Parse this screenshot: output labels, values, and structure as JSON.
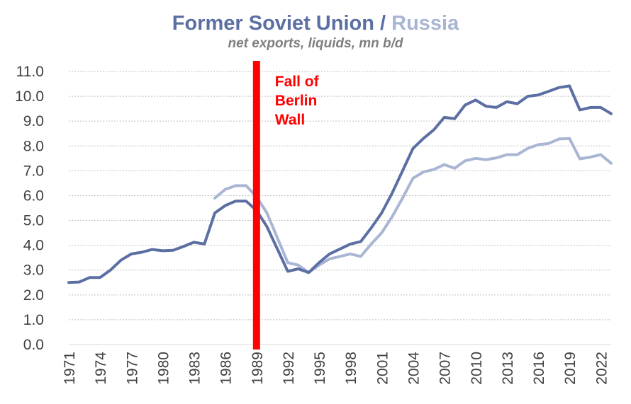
{
  "colors": {
    "fsu": "#5b6fa3",
    "russia": "#a9b6d3",
    "marker": "#ff0000",
    "grid": "#bfbfbf",
    "text": "#404040"
  },
  "chart_data": {
    "type": "line",
    "title_part1": "Former Soviet Union",
    "title_sep": " / ",
    "title_part2": "Russia",
    "subtitle": "net exports, liquids, mn b/d",
    "xlabel": "",
    "ylabel": "",
    "ylim": [
      0,
      11
    ],
    "yticks": [
      "0.0",
      "1.0",
      "2.0",
      "3.0",
      "4.0",
      "5.0",
      "6.0",
      "7.0",
      "8.0",
      "9.0",
      "10.0",
      "11.0"
    ],
    "xlim": [
      1971,
      2023
    ],
    "xticks": [
      1971,
      1974,
      1977,
      1980,
      1983,
      1986,
      1989,
      1992,
      1995,
      1998,
      2001,
      2004,
      2007,
      2010,
      2013,
      2016,
      2019,
      2022
    ],
    "grid": true,
    "legend": "none",
    "series": [
      {
        "key": "fsu",
        "x": [
          1971,
          1972,
          1973,
          1974,
          1975,
          1976,
          1977,
          1978,
          1979,
          1980,
          1981,
          1982,
          1983,
          1984,
          1985,
          1986,
          1987,
          1988,
          1989,
          1990,
          1991,
          1992,
          1993,
          1994,
          1995,
          1996,
          1997,
          1998,
          1999,
          2000,
          2001,
          2002,
          2003,
          2004,
          2005,
          2006,
          2007,
          2008,
          2009,
          2010,
          2011,
          2012,
          2013,
          2014,
          2015,
          2016,
          2017,
          2018,
          2019,
          2020,
          2021,
          2022,
          2023
        ],
        "values": [
          2.5,
          2.52,
          2.7,
          2.7,
          3.0,
          3.4,
          3.65,
          3.72,
          3.83,
          3.78,
          3.8,
          3.95,
          4.12,
          4.05,
          5.3,
          5.6,
          5.78,
          5.78,
          5.4,
          4.75,
          3.85,
          2.95,
          3.05,
          2.9,
          3.3,
          3.65,
          3.85,
          4.05,
          4.15,
          4.7,
          5.3,
          6.1,
          7.0,
          7.9,
          8.3,
          8.65,
          9.15,
          9.1,
          9.65,
          9.85,
          9.6,
          9.55,
          9.78,
          9.7,
          10.0,
          10.05,
          10.2,
          10.35,
          10.42,
          9.45,
          9.55,
          9.55,
          9.3
        ]
      },
      {
        "key": "russia",
        "x": [
          1985,
          1986,
          1987,
          1988,
          1989,
          1990,
          1991,
          1992,
          1993,
          1994,
          1995,
          1996,
          1997,
          1998,
          1999,
          2000,
          2001,
          2002,
          2003,
          2004,
          2005,
          2006,
          2007,
          2008,
          2009,
          2010,
          2011,
          2012,
          2013,
          2014,
          2015,
          2016,
          2017,
          2018,
          2019,
          2020,
          2021,
          2022,
          2023
        ],
        "values": [
          5.9,
          6.25,
          6.4,
          6.4,
          5.95,
          5.3,
          4.3,
          3.3,
          3.2,
          2.9,
          3.2,
          3.45,
          3.55,
          3.65,
          3.55,
          4.05,
          4.5,
          5.15,
          5.9,
          6.7,
          6.95,
          7.05,
          7.25,
          7.1,
          7.4,
          7.5,
          7.45,
          7.52,
          7.65,
          7.65,
          7.9,
          8.05,
          8.1,
          8.28,
          8.3,
          7.48,
          7.55,
          7.65,
          7.3
        ]
      }
    ],
    "annotations": [
      {
        "type": "vertical-line",
        "x": 1989,
        "label_lines": [
          "Fall of",
          "Berlin",
          "Wall"
        ]
      }
    ]
  }
}
